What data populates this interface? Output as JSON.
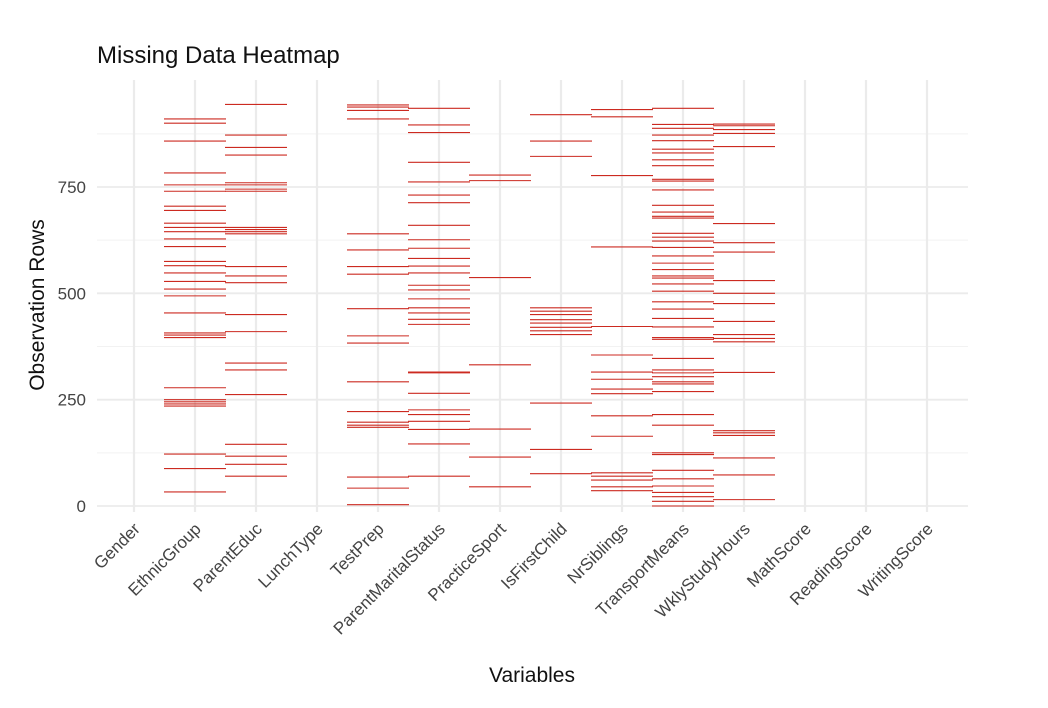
{
  "chart_data": {
    "type": "heatmap",
    "title": "Missing Data Heatmap",
    "xlabel": "Variables",
    "ylabel": "Observation Rows",
    "ylim": [
      0,
      950
    ],
    "yticks": [
      0,
      250,
      500,
      750
    ],
    "grid": true,
    "legend": "none",
    "missing_color": "#cc2a20",
    "grid_color": "#ebebeb",
    "categories": [
      "Gender",
      "EthnicGroup",
      "ParentEduc",
      "LunchType",
      "TestPrep",
      "ParentMaritalStatus",
      "PracticeSport",
      "IsFirstChild",
      "NrSiblings",
      "TransportMeans",
      "WklyStudyHours",
      "MathScore",
      "ReadingScore",
      "WritingScore"
    ],
    "missing_rows": [
      [],
      [
        33,
        88,
        122,
        235,
        240,
        245,
        250,
        278,
        396,
        402,
        407,
        454,
        494,
        510,
        528,
        548,
        565,
        575,
        610,
        628,
        645,
        655,
        665,
        695,
        705,
        740,
        755,
        783,
        858,
        900,
        910
      ],
      [
        70,
        98,
        117,
        145,
        262,
        320,
        336,
        410,
        450,
        525,
        541,
        563,
        640,
        645,
        650,
        655,
        740,
        745,
        755,
        760,
        825,
        843,
        872,
        944
      ],
      [],
      [
        3,
        42,
        68,
        185,
        190,
        197,
        222,
        292,
        383,
        400,
        464,
        545,
        563,
        602,
        640,
        910,
        930,
        938,
        943
      ],
      [
        70,
        146,
        180,
        199,
        215,
        226,
        265,
        313,
        315,
        427,
        439,
        454,
        466,
        487,
        508,
        519,
        548,
        564,
        582,
        606,
        626,
        660,
        713,
        731,
        762,
        808,
        878,
        896,
        935
      ],
      [
        45,
        115,
        181,
        332,
        537,
        765,
        778
      ],
      [
        76,
        133,
        242,
        403,
        412,
        420,
        430,
        438,
        450,
        458,
        466,
        822,
        858,
        920
      ],
      [
        36,
        45,
        61,
        70,
        78,
        164,
        212,
        264,
        275,
        298,
        315,
        355,
        422,
        609,
        777,
        915,
        932
      ],
      [
        0,
        11,
        22,
        32,
        47,
        64,
        84,
        121,
        125,
        190,
        215,
        269,
        287,
        292,
        304,
        313,
        320,
        347,
        392,
        396,
        421,
        441,
        463,
        480,
        505,
        522,
        536,
        541,
        556,
        571,
        588,
        608,
        623,
        632,
        641,
        677,
        681,
        691,
        707,
        743,
        764,
        768,
        800,
        814,
        830,
        839,
        859,
        872,
        888,
        897,
        935
      ],
      [
        15,
        73,
        113,
        166,
        172,
        177,
        314,
        386,
        394,
        403,
        434,
        476,
        500,
        530,
        597,
        619,
        664,
        845,
        876,
        885,
        894,
        898
      ]
    ]
  }
}
